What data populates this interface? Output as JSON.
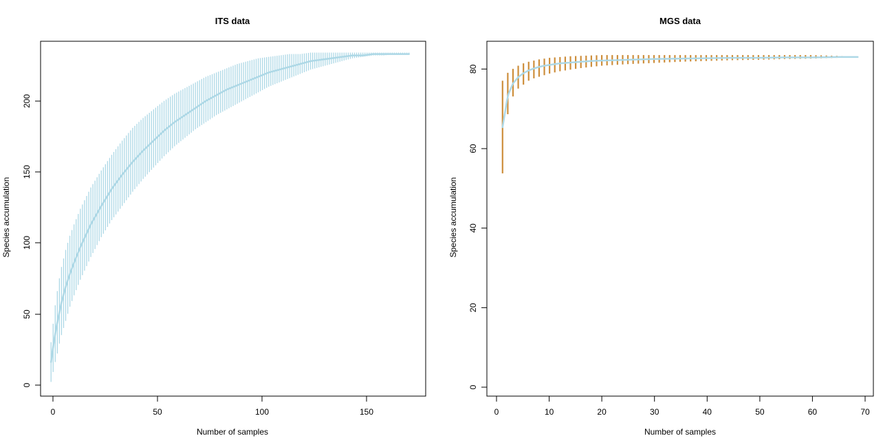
{
  "chart_data": [
    {
      "type": "line",
      "title": "ITS data",
      "xlabel": "Number of samples",
      "ylabel": "Species accumulation",
      "xlim": [
        -4,
        180
      ],
      "ylim": [
        -9,
        241
      ],
      "xticks": [
        "0",
        "50",
        "100",
        "150"
      ],
      "yticks": [
        "0",
        "50",
        "100",
        "150",
        "200"
      ],
      "grid": false,
      "colors": {
        "curve": "#ADD8E6",
        "errorbars": "#ADD8E6"
      },
      "series": [
        {
          "x": [
            1,
            2,
            3,
            4,
            5,
            6,
            8,
            10,
            12,
            15,
            20,
            25,
            30,
            35,
            40,
            45,
            50,
            55,
            60,
            65,
            70,
            75,
            80,
            85,
            90,
            95,
            100,
            105,
            110,
            115,
            120,
            125,
            130,
            135,
            140,
            145,
            150,
            155,
            160,
            165,
            170,
            172
          ],
          "y": [
            15,
            26,
            35,
            43,
            50,
            57,
            68,
            77,
            85,
            96,
            112,
            125,
            137,
            147,
            156,
            164,
            171,
            178,
            184,
            189,
            194,
            199,
            203,
            207,
            210,
            213,
            216,
            219,
            221,
            223,
            225,
            227,
            228,
            229,
            230,
            231,
            231,
            232,
            232,
            232,
            232,
            232
          ],
          "lower": [
            1,
            8,
            15,
            21,
            28,
            34,
            44,
            54,
            62,
            73,
            89,
            103,
            115,
            125,
            135,
            144,
            152,
            160,
            167,
            173,
            179,
            184,
            189,
            193,
            197,
            201,
            205,
            209,
            212,
            215,
            218,
            221,
            223,
            225,
            227,
            229,
            230,
            231,
            231,
            232,
            232,
            232
          ],
          "upper": [
            29,
            42,
            55,
            65,
            74,
            82,
            94,
            104,
            112,
            123,
            138,
            150,
            161,
            171,
            180,
            187,
            193,
            199,
            204,
            208,
            212,
            216,
            219,
            222,
            225,
            227,
            229,
            230,
            231,
            232,
            232,
            233,
            233,
            233,
            233,
            233,
            233,
            233,
            233,
            233,
            233,
            233
          ]
        }
      ]
    },
    {
      "type": "line",
      "title": "MGS data",
      "xlabel": "Number of samples",
      "ylabel": "Species accumulation",
      "xlim": [
        -2,
        72
      ],
      "ylim": [
        -3,
        87
      ],
      "xticks": [
        "0",
        "10",
        "20",
        "30",
        "40",
        "50",
        "60",
        "70"
      ],
      "yticks": [
        "0",
        "20",
        "40",
        "60",
        "80"
      ],
      "grid": false,
      "colors": {
        "curve": "#ADD8E6",
        "errorbars": "#CD8E3B"
      },
      "series": [
        {
          "x": [
            1,
            2,
            3,
            4,
            5,
            6,
            7,
            8,
            9,
            10,
            12,
            14,
            16,
            18,
            20,
            25,
            30,
            35,
            40,
            45,
            50,
            55,
            60,
            65,
            69
          ],
          "y": [
            65.2,
            73.2,
            76.3,
            77.9,
            78.9,
            79.6,
            80.1,
            80.5,
            80.8,
            81.0,
            81.4,
            81.6,
            81.8,
            82.0,
            82.1,
            82.3,
            82.5,
            82.6,
            82.7,
            82.8,
            82.8,
            82.9,
            82.9,
            83.0,
            83.0
          ],
          "lower": [
            53.5,
            68.5,
            73.0,
            75.0,
            76.0,
            77.0,
            77.6,
            78.0,
            78.4,
            78.8,
            79.4,
            79.8,
            80.2,
            80.5,
            80.8,
            81.2,
            81.5,
            81.8,
            82.0,
            82.2,
            82.3,
            82.5,
            82.6,
            82.8,
            83.0
          ],
          "upper": [
            77.0,
            79.0,
            80.0,
            80.8,
            81.4,
            81.8,
            82.1,
            82.4,
            82.6,
            82.8,
            83.0,
            83.2,
            83.3,
            83.4,
            83.5,
            83.5,
            83.5,
            83.5,
            83.5,
            83.5,
            83.5,
            83.5,
            83.5,
            83.3,
            83.0
          ]
        }
      ]
    }
  ]
}
